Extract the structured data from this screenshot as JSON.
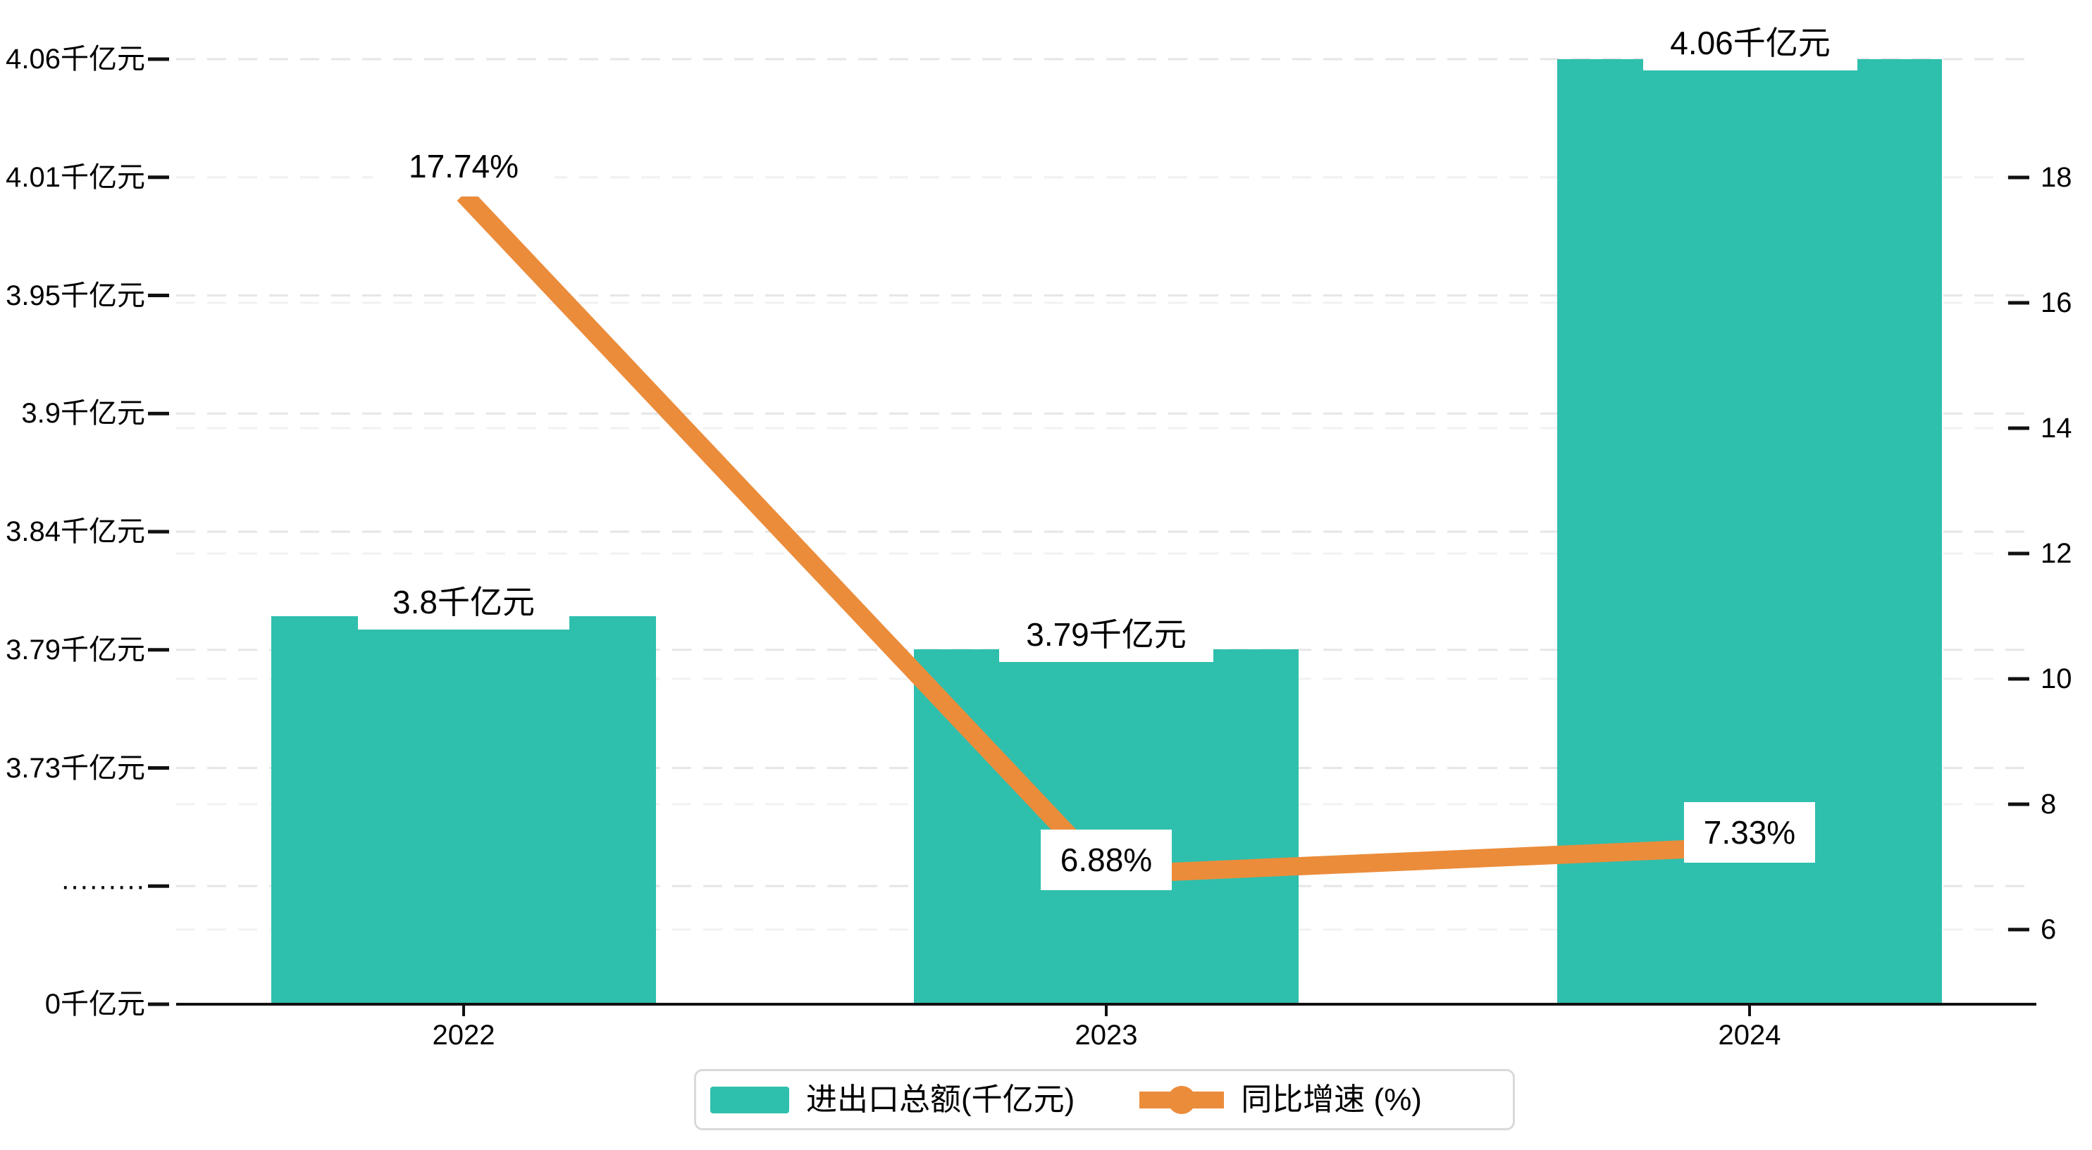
{
  "chart_data": {
    "type": "combo",
    "categories": [
      "2022",
      "2023",
      "2024"
    ],
    "series": [
      {
        "name": "进出口总额(千亿元)",
        "type": "bar",
        "axis": "left",
        "values": [
          3.8,
          3.79,
          4.06
        ],
        "labels": [
          "3.8千亿元",
          "3.79千亿元",
          "4.06千亿元"
        ],
        "color": "#2FBFAD"
      },
      {
        "name": "同比增速 (%)",
        "type": "line",
        "axis": "right",
        "values": [
          17.74,
          6.88,
          7.33
        ],
        "labels": [
          "17.74%",
          "6.88%",
          "7.33%"
        ],
        "color": "#EB8C3B"
      }
    ],
    "left_axis": {
      "ticks": [
        "4.06千亿元",
        "4.01千亿元",
        "3.95千亿元",
        "3.9千亿元",
        "3.84千亿元",
        "3.79千亿元",
        "3.73千亿元",
        "·········",
        "0千亿元"
      ]
    },
    "right_axis": {
      "ticks": [
        "18",
        "16",
        "14",
        "12",
        "10",
        "8",
        "6"
      ],
      "range_top": 18,
      "range_bottom": 6
    },
    "x_axis": {
      "labels": [
        "2022",
        "2023",
        "2024"
      ]
    },
    "legend": [
      {
        "label": "进出口总额(千亿元)",
        "marker": "bar-swatch",
        "color": "#2FBFAD"
      },
      {
        "label": "同比增速 (%)",
        "marker": "line-dot",
        "color": "#EB8C3B"
      }
    ],
    "grid": true,
    "legend_position": "bottom-center"
  },
  "colors": {
    "bar": "#2FBFAD",
    "line": "#EB8C3B",
    "grid_left": "#e6e6e6",
    "grid_right": "#f2f2f2",
    "axis": "#111111",
    "legend_border": "#d9d9d9",
    "background": "#ffffff"
  }
}
